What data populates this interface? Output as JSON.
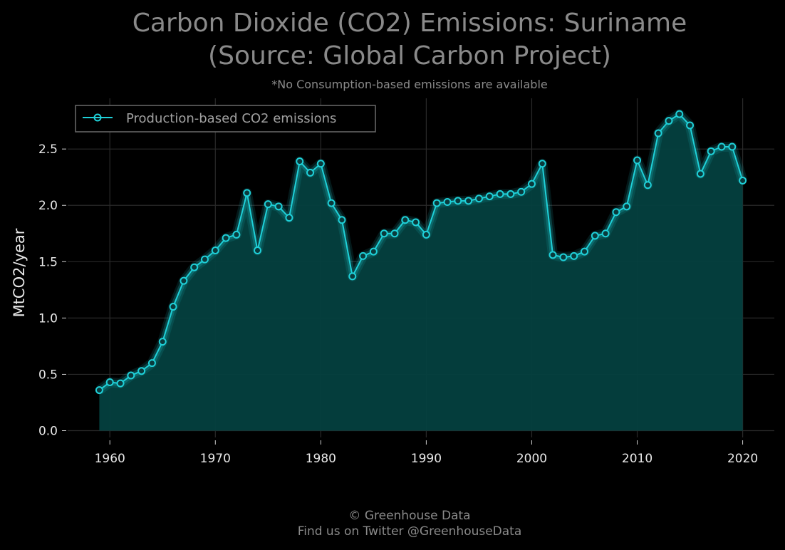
{
  "chart_data": {
    "type": "area",
    "title_line1": "Carbon Dioxide (CO2) Emissions: Suriname",
    "title_line2": "(Source: Global Carbon Project)",
    "subtitle": "*No Consumption-based emissions are available",
    "xlabel": "",
    "ylabel": "MtCO2/year",
    "xlim": [
      1956,
      2023
    ],
    "ylim": [
      -0.06,
      2.95
    ],
    "x_ticks": [
      1960,
      1970,
      1980,
      1990,
      2000,
      2010,
      2020
    ],
    "y_ticks": [
      0.0,
      0.5,
      1.0,
      1.5,
      2.0,
      2.5
    ],
    "y_tick_labels": [
      "0.0",
      "0.5",
      "1.0",
      "1.5",
      "2.0",
      "2.5"
    ],
    "grid": true,
    "legend_position": "top-left",
    "series": [
      {
        "name": "Production-based CO2 emissions",
        "color": "#1fd0d8",
        "fill_color": "#04403f",
        "x": [
          1959,
          1960,
          1961,
          1962,
          1963,
          1964,
          1965,
          1966,
          1967,
          1968,
          1969,
          1970,
          1971,
          1972,
          1973,
          1974,
          1975,
          1976,
          1977,
          1978,
          1979,
          1980,
          1981,
          1982,
          1983,
          1984,
          1985,
          1986,
          1987,
          1988,
          1989,
          1990,
          1991,
          1992,
          1993,
          1994,
          1995,
          1996,
          1997,
          1998,
          1999,
          2000,
          2001,
          2002,
          2003,
          2004,
          2005,
          2006,
          2007,
          2008,
          2009,
          2010,
          2011,
          2012,
          2013,
          2014,
          2015,
          2016,
          2017,
          2018,
          2019,
          2020
        ],
        "values": [
          0.36,
          0.43,
          0.42,
          0.49,
          0.53,
          0.6,
          0.79,
          1.1,
          1.33,
          1.45,
          1.52,
          1.6,
          1.71,
          1.74,
          2.11,
          1.6,
          2.01,
          1.99,
          1.89,
          2.39,
          2.29,
          2.37,
          2.02,
          1.87,
          1.37,
          1.55,
          1.59,
          1.75,
          1.75,
          1.87,
          1.85,
          1.74,
          2.02,
          2.03,
          2.04,
          2.04,
          2.06,
          2.08,
          2.1,
          2.1,
          2.12,
          2.19,
          2.37,
          1.56,
          1.54,
          1.55,
          1.59,
          1.73,
          1.75,
          1.94,
          1.99,
          2.4,
          2.18,
          2.64,
          2.75,
          2.81,
          2.71,
          2.28,
          2.48,
          2.52,
          2.52,
          2.22
        ]
      }
    ]
  },
  "legend": {
    "label": "Production-based CO2 emissions"
  },
  "footer": {
    "line1": "© Greenhouse Data",
    "line2": "Find us on Twitter @GreenhouseData"
  }
}
